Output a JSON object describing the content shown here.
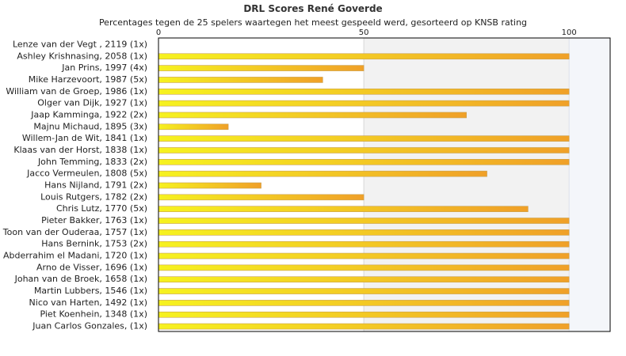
{
  "chart_data": {
    "type": "bar",
    "orientation": "horizontal",
    "title": "DRL Scores René Goverde",
    "subtitle": "Percentages tegen de 25 spelers waartegen het meest gespeeld werd, gesorteerd op KNSB rating",
    "xlim": [
      0,
      110
    ],
    "xticks": [
      "0",
      "50",
      "100"
    ],
    "categories": [
      "Lenze van der Vegt , 2119 (1x)",
      "Ashley Krishnasing, 2058 (1x)",
      "Jan Prins, 1997 (4x)",
      "Mike Harzevoort, 1987 (5x)",
      "William van de Groep, 1986 (1x)",
      "Olger van Dijk, 1927 (1x)",
      "Jaap Kamminga, 1922 (2x)",
      "Majnu Michaud, 1895 (3x)",
      "Willem-Jan de Wit, 1841 (1x)",
      "Klaas van der Horst, 1838 (1x)",
      "John Temming, 1833 (2x)",
      "Jacco Vermeulen, 1808 (5x)",
      "Hans Nijland, 1791 (2x)",
      "Louis Rutgers, 1782 (2x)",
      "Chris Lutz, 1770 (5x)",
      "Pieter Bakker, 1763 (1x)",
      "Toon van der Ouderaa, 1757 (1x)",
      "Hans Bernink, 1753 (2x)",
      "Abderrahim el Madani, 1720 (1x)",
      "Arno de Visser, 1696 (1x)",
      "Johan van de Broek, 1658 (1x)",
      "Martin Lubbers, 1546 (1x)",
      "Nico van Harten, 1492 (1x)",
      "Piet Koenhein, 1348 (1x)",
      "Juan Carlos Gonzales,  (1x)"
    ],
    "values": [
      0,
      100,
      50,
      40,
      100,
      100,
      75,
      17,
      100,
      100,
      100,
      80,
      25,
      50,
      90,
      100,
      100,
      100,
      100,
      100,
      100,
      100,
      100,
      100,
      100
    ],
    "colors": {
      "bar_light": "#f6f220",
      "bar_dark": "#f0a028",
      "bar_edge": "#c8a050",
      "band_50_100": "#f2f2f2",
      "band_100_110": "#f4f6fa",
      "axis": "#000000"
    }
  }
}
